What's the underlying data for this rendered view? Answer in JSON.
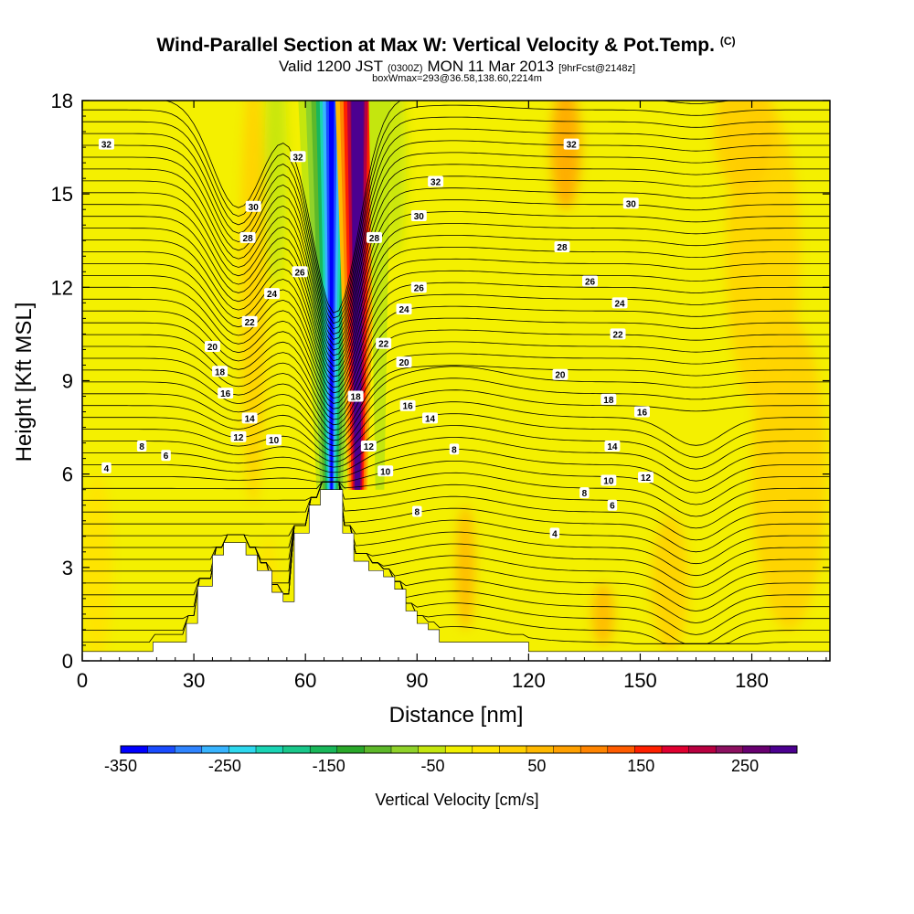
{
  "chart_data": {
    "type": "heatmap",
    "title": "Wind-Parallel Section at Max W: Vertical Velocity & Pot.Temp.",
    "title_mark": "(C)",
    "subtitle_parts": [
      "Valid 1200 JST",
      "(0300Z)",
      "MON 11 Mar 2013",
      "[9hrFcst@2148z]"
    ],
    "subtitle2": "boxWmax=293@36.58,138.60,2214m",
    "xlabel": "Distance [nm]",
    "ylabel": "Height [Kft MSL]",
    "xlim": [
      0,
      201
    ],
    "ylim": [
      0,
      18
    ],
    "xticks": [
      0,
      30,
      60,
      90,
      120,
      150,
      180
    ],
    "yticks": [
      0,
      3,
      6,
      9,
      12,
      15,
      18
    ],
    "grid": false,
    "colorbar": {
      "label": "Vertical Velocity [cm/s]",
      "range": [
        -350,
        300
      ],
      "ticks": [
        -350,
        -250,
        -150,
        -50,
        50,
        150,
        250
      ],
      "colors": [
        "#0000ff",
        "#1a4cff",
        "#2f84ff",
        "#38b4ff",
        "#2ed8ee",
        "#1ad4b4",
        "#19c78a",
        "#19b75a",
        "#2aa82a",
        "#5db82a",
        "#8fd22a",
        "#c4e60e",
        "#f0f000",
        "#ffe600",
        "#ffd000",
        "#ffb800",
        "#ffa000",
        "#ff8400",
        "#ff5c00",
        "#ff2000",
        "#e00030",
        "#b80040",
        "#8c1060",
        "#680070",
        "#4c0090"
      ]
    },
    "updraft": {
      "x": 74,
      "w_cm_s": 293
    },
    "downdraft": {
      "x": 67,
      "w_cm_s": -350
    },
    "terrain_kft": [
      [
        0,
        0.3
      ],
      [
        19,
        0.3
      ],
      [
        19,
        0.6
      ],
      [
        28,
        0.6
      ],
      [
        28,
        1.2
      ],
      [
        31,
        1.2
      ],
      [
        31,
        2.4
      ],
      [
        35,
        2.4
      ],
      [
        35,
        3.4
      ],
      [
        38,
        3.4
      ],
      [
        38,
        3.8
      ],
      [
        44,
        3.8
      ],
      [
        44,
        3.4
      ],
      [
        47,
        3.4
      ],
      [
        47,
        2.9
      ],
      [
        51,
        2.9
      ],
      [
        51,
        2.2
      ],
      [
        54,
        2.2
      ],
      [
        54,
        1.9
      ],
      [
        57,
        1.9
      ],
      [
        57,
        4.1
      ],
      [
        61,
        4.1
      ],
      [
        61,
        5.0
      ],
      [
        64,
        5.0
      ],
      [
        64,
        5.5
      ],
      [
        70,
        5.5
      ],
      [
        70,
        4.1
      ],
      [
        73,
        4.1
      ],
      [
        73,
        3.2
      ],
      [
        77,
        3.2
      ],
      [
        77,
        2.9
      ],
      [
        81,
        2.9
      ],
      [
        81,
        2.7
      ],
      [
        84,
        2.7
      ],
      [
        84,
        2.3
      ],
      [
        87,
        2.3
      ],
      [
        87,
        1.6
      ],
      [
        90,
        1.6
      ],
      [
        90,
        1.2
      ],
      [
        93,
        1.2
      ],
      [
        93,
        1.0
      ],
      [
        96,
        1.0
      ],
      [
        96,
        0.6
      ],
      [
        120,
        0.6
      ],
      [
        120,
        0.3
      ],
      [
        201,
        0.3
      ]
    ],
    "isentropes": [
      {
        "value": 4,
        "y": 5.95,
        "labels": [
          [
            6.5,
            6.2
          ],
          [
            127,
            4.1
          ]
        ]
      },
      {
        "value": 6,
        "y": 6.35,
        "labels": [
          [
            22.5,
            6.6
          ],
          [
            142.5,
            5.0
          ]
        ]
      },
      {
        "value": 8,
        "y": 6.75,
        "labels": [
          [
            16,
            6.9
          ],
          [
            100,
            6.8
          ],
          [
            135,
            5.4
          ],
          [
            90,
            4.8
          ]
        ]
      },
      {
        "value": 10,
        "y": 7.15,
        "labels": [
          [
            51.5,
            7.1
          ],
          [
            81.5,
            6.1
          ],
          [
            141.5,
            5.8
          ]
        ]
      },
      {
        "value": 12,
        "y": 7.55,
        "labels": [
          [
            42,
            7.2
          ],
          [
            77,
            6.9
          ],
          [
            151.5,
            5.9
          ]
        ]
      },
      {
        "value": 14,
        "y": 7.95,
        "labels": [
          [
            45,
            7.8
          ],
          [
            93.5,
            7.8
          ],
          [
            142.5,
            6.9
          ]
        ]
      },
      {
        "value": 16,
        "y": 8.35,
        "labels": [
          [
            38.5,
            8.6
          ],
          [
            87.5,
            8.2
          ],
          [
            150.5,
            8.0
          ]
        ]
      },
      {
        "value": 18,
        "y": 8.75,
        "labels": [
          [
            37,
            9.3
          ],
          [
            73.5,
            8.5
          ],
          [
            141.5,
            8.4
          ]
        ]
      },
      {
        "value": 20,
        "y": 9.15,
        "labels": [
          [
            35,
            10.1
          ],
          [
            86.5,
            9.6
          ],
          [
            128.5,
            9.2
          ]
        ]
      },
      {
        "value": 22,
        "y": 9.7,
        "labels": [
          [
            45,
            10.9
          ],
          [
            81,
            10.2
          ],
          [
            144,
            10.5
          ]
        ]
      },
      {
        "value": 24,
        "y": 10.3,
        "labels": [
          [
            51,
            11.8
          ],
          [
            86.5,
            11.3
          ],
          [
            144.5,
            11.5
          ]
        ]
      },
      {
        "value": 26,
        "y": 10.9,
        "labels": [
          [
            58.5,
            12.5
          ],
          [
            90.5,
            12.0
          ],
          [
            136.5,
            12.2
          ]
        ]
      },
      {
        "value": 28,
        "y": 11.5,
        "labels": [
          [
            44.5,
            13.6
          ],
          [
            78.5,
            13.6
          ],
          [
            129,
            13.3
          ]
        ]
      },
      {
        "value": 30,
        "y": 12.35,
        "labels": [
          [
            46,
            14.6
          ],
          [
            90.5,
            14.3
          ],
          [
            147.5,
            14.7
          ]
        ]
      },
      {
        "value": 32,
        "y": 13.25,
        "labels": [
          [
            6.5,
            16.6
          ],
          [
            58,
            16.2
          ],
          [
            95,
            15.4
          ],
          [
            131.5,
            16.6
          ]
        ]
      }
    ]
  }
}
